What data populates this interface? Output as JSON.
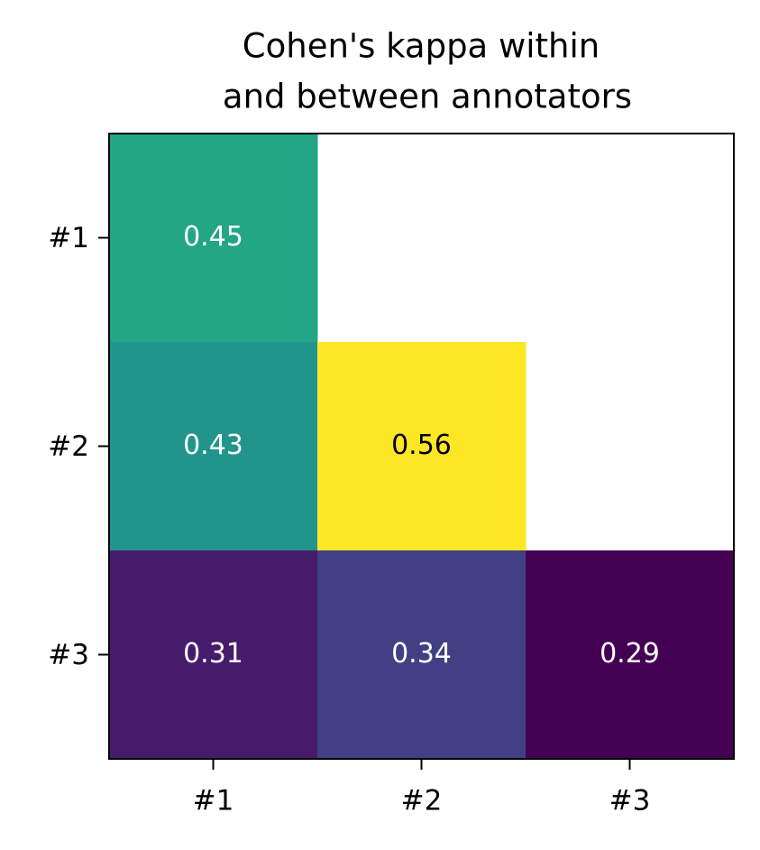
{
  "chart_data": {
    "type": "heatmap",
    "title": [
      "Cohen's kappa within",
      "and between annotators"
    ],
    "x_categories": [
      "#1",
      "#2",
      "#3"
    ],
    "y_categories": [
      "#1",
      "#2",
      "#3"
    ],
    "values": [
      [
        0.45,
        null,
        null
      ],
      [
        0.43,
        0.56,
        null
      ],
      [
        0.31,
        0.34,
        0.29
      ]
    ],
    "colormap": "viridis"
  }
}
